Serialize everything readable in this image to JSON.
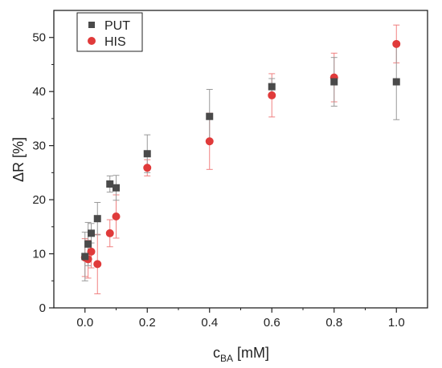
{
  "chart_data": {
    "type": "scatter",
    "title": "",
    "xlabel": {
      "main": "c",
      "sub": "BA",
      "unit": " [mM]"
    },
    "ylabel": "ΔR [%]",
    "xlim": [
      -0.1,
      1.1
    ],
    "ylim": [
      0,
      55
    ],
    "xticks": [
      0.0,
      0.2,
      0.4,
      0.6,
      0.8,
      1.0
    ],
    "xtick_labels": [
      "0.0",
      "0.2",
      "0.4",
      "0.6",
      "0.8",
      "1.0"
    ],
    "yticks": [
      0,
      10,
      20,
      30,
      40,
      50
    ],
    "ytick_labels": [
      "0",
      "10",
      "20",
      "30",
      "40",
      "50"
    ],
    "grid": false,
    "legend_position": "top-left",
    "series": [
      {
        "name": "PUT",
        "marker": "square",
        "color": "#4a4a4a",
        "errorbar_color": "#999999",
        "points": [
          {
            "x": 0.0,
            "y": 9.5,
            "err": 4.5
          },
          {
            "x": 0.01,
            "y": 11.8,
            "err": 4.0
          },
          {
            "x": 0.02,
            "y": 13.8,
            "err": 1.8
          },
          {
            "x": 0.04,
            "y": 16.5,
            "err": 3.0
          },
          {
            "x": 0.08,
            "y": 22.9,
            "err": 1.5
          },
          {
            "x": 0.1,
            "y": 22.2,
            "err": 2.3
          },
          {
            "x": 0.2,
            "y": 28.5,
            "err": 3.5
          },
          {
            "x": 0.4,
            "y": 35.4,
            "err": 5.0
          },
          {
            "x": 0.6,
            "y": 40.9,
            "err": 1.5
          },
          {
            "x": 0.8,
            "y": 41.8,
            "err": 4.5
          },
          {
            "x": 1.0,
            "y": 41.8,
            "err": 7.0
          }
        ]
      },
      {
        "name": "HIS",
        "marker": "circle",
        "color": "#e03a3a",
        "errorbar_color": "#f08080",
        "points": [
          {
            "x": 0.0,
            "y": 9.3,
            "err": 3.5
          },
          {
            "x": 0.01,
            "y": 9.0,
            "err": 3.5
          },
          {
            "x": 0.02,
            "y": 10.4,
            "err": 3.0
          },
          {
            "x": 0.04,
            "y": 8.1,
            "err": 5.5
          },
          {
            "x": 0.08,
            "y": 13.8,
            "err": 2.5
          },
          {
            "x": 0.1,
            "y": 16.9,
            "err": 4.0
          },
          {
            "x": 0.2,
            "y": 25.9,
            "err": 1.5
          },
          {
            "x": 0.4,
            "y": 30.8,
            "err": 5.2
          },
          {
            "x": 0.6,
            "y": 39.3,
            "err": 4.0
          },
          {
            "x": 0.8,
            "y": 42.6,
            "err": 4.5
          },
          {
            "x": 1.0,
            "y": 48.8,
            "err": 3.5
          }
        ]
      }
    ]
  }
}
